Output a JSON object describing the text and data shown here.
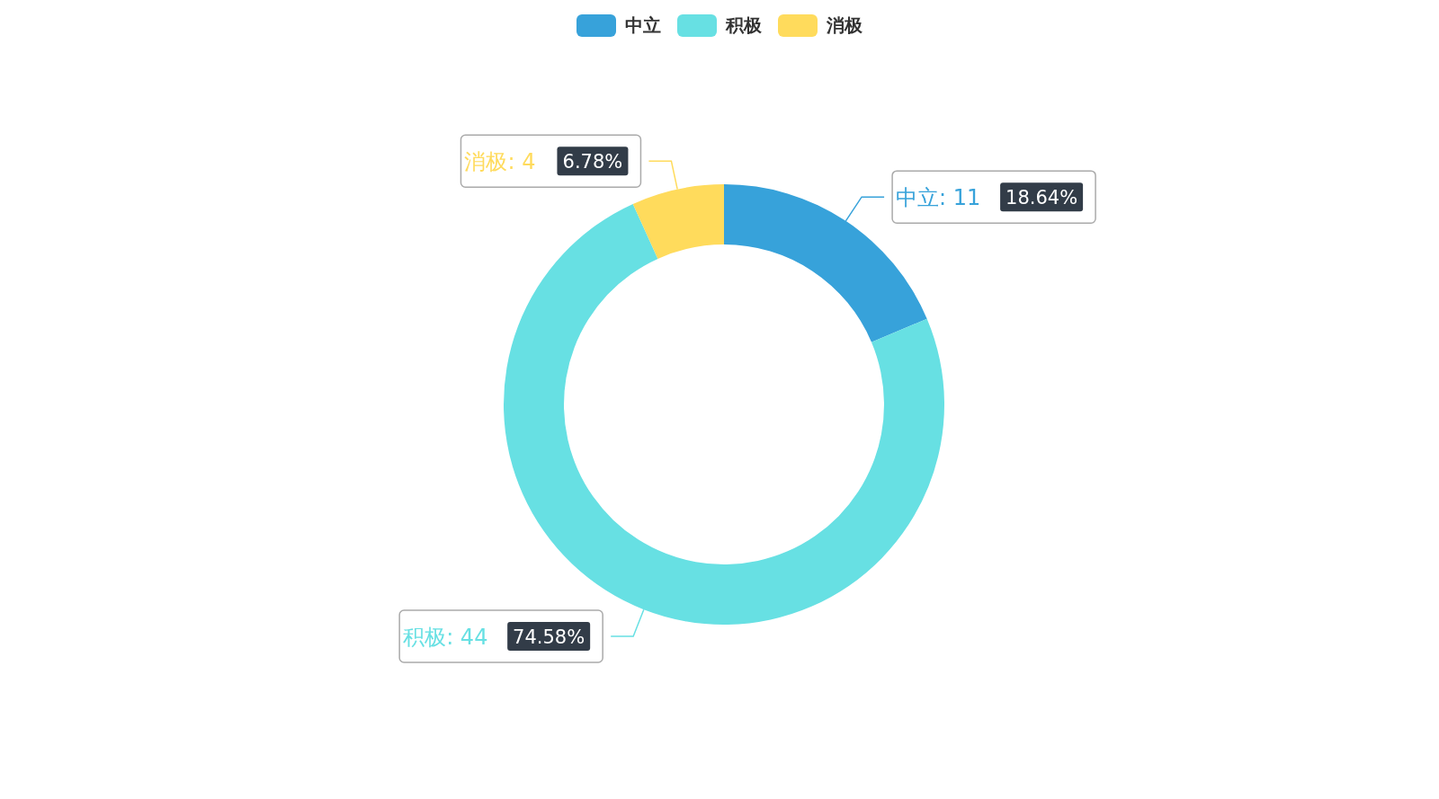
{
  "chart_data": {
    "type": "donut",
    "categories": [
      "中立",
      "积极",
      "消极"
    ],
    "values": [
      18.64,
      74.58,
      6.78
    ],
    "colors": [
      "#37a2da",
      "#67e0e3",
      "#ffdb5c"
    ],
    "value_labels": [
      "18.64%",
      "74.58%",
      "6.78%"
    ],
    "annotations": [
      "中立: 11",
      "积极: 44",
      "消极: 4"
    ],
    "legend": "top"
  }
}
